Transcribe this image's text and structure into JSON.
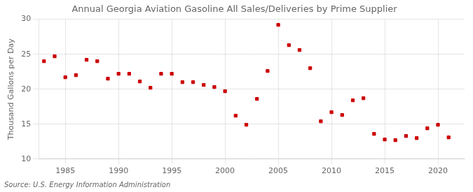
{
  "chart_data": {
    "type": "scatter",
    "title": "Annual Georgia Aviation Gasoline All Sales/Deliveries by Prime Supplier",
    "ylabel": "Thousand Gallons per Day",
    "annotation": "Source: U.S. Energy Information Administration",
    "x": [
      1983,
      1984,
      1985,
      1986,
      1987,
      1988,
      1989,
      1990,
      1991,
      1992,
      1993,
      1994,
      1995,
      1996,
      1997,
      1998,
      1999,
      2000,
      2001,
      2002,
      2003,
      2004,
      2005,
      2006,
      2007,
      2008,
      2009,
      2010,
      2011,
      2012,
      2013,
      2014,
      2015,
      2016,
      2017,
      2018,
      2019,
      2020,
      2021
    ],
    "values": [
      24.0,
      24.7,
      21.7,
      22.0,
      24.2,
      24.0,
      21.5,
      22.2,
      22.2,
      21.1,
      20.2,
      22.2,
      22.2,
      21.0,
      21.0,
      20.6,
      20.3,
      19.7,
      16.2,
      14.9,
      18.6,
      22.6,
      29.2,
      26.3,
      25.6,
      23.0,
      15.4,
      16.7,
      16.3,
      18.4,
      18.7,
      13.6,
      12.8,
      12.7,
      13.3,
      13.0,
      14.4,
      14.9,
      13.1
    ],
    "xlim": [
      1982.5,
      2022.5
    ],
    "ylim": [
      10,
      30
    ],
    "xticks": [
      1985,
      1990,
      1995,
      2000,
      2005,
      2010,
      2015,
      2020
    ],
    "yticks": [
      10,
      15,
      20,
      25,
      30
    ],
    "color": "#cc0000",
    "marker": "square",
    "grid": true
  }
}
